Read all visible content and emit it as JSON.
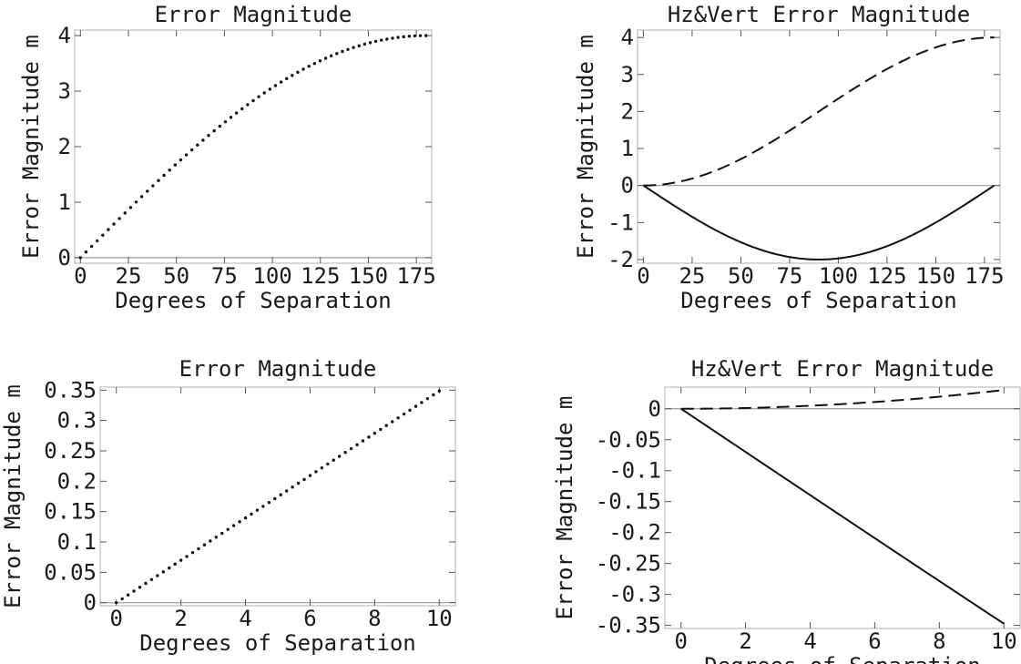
{
  "chart_data": [
    {
      "type": "line",
      "title": "Error Magnitude",
      "xlabel": "Degrees of Separation",
      "ylabel": "Error Magnitude m",
      "xlim": [
        -3,
        183
      ],
      "ylim": [
        -0.1,
        4.1
      ],
      "xticks": [
        0,
        25,
        50,
        75,
        100,
        125,
        150,
        175
      ],
      "yticks": [
        0,
        1,
        2,
        3,
        4
      ],
      "grid": false,
      "series": [
        {
          "style": "dotted",
          "x": [
            0,
            180
          ],
          "y": [
            0,
            4
          ],
          "function": "4*sin(x/2 deg)"
        }
      ]
    },
    {
      "type": "line",
      "title": "Hz&Vert Error Magnitude",
      "xlabel": "Degrees of Separation",
      "ylabel": "Error Magnitude m",
      "xlim": [
        -3,
        183
      ],
      "ylim": [
        -2.1,
        4.2
      ],
      "xticks": [
        0,
        25,
        50,
        75,
        100,
        125,
        150,
        175
      ],
      "yticks": [
        -2,
        -1,
        0,
        1,
        2,
        3,
        4
      ],
      "grid": false,
      "series": [
        {
          "style": "dashed",
          "x": [
            0,
            180
          ],
          "y": [
            0,
            4
          ],
          "function": "2*(1-cos(x deg))"
        },
        {
          "style": "solid",
          "x": [
            0,
            90,
            180
          ],
          "y": [
            0,
            -2,
            0
          ],
          "function": "-2*sin(x deg)"
        }
      ]
    },
    {
      "type": "line",
      "title": "Error Magnitude",
      "xlabel": "Degrees of Separation",
      "ylabel": "Error Magnitude m",
      "xlim": [
        -0.5,
        10.5
      ],
      "ylim": [
        -0.005,
        0.355
      ],
      "xticks": [
        0,
        2,
        4,
        6,
        8,
        10
      ],
      "yticks": [
        0,
        0.05,
        0.1,
        0.15,
        0.2,
        0.25,
        0.3,
        0.35
      ],
      "grid": false,
      "series": [
        {
          "style": "dotted",
          "x": [
            0,
            10
          ],
          "y": [
            0,
            0.349
          ],
          "function": "4*sin(x/2 deg)"
        }
      ]
    },
    {
      "type": "line",
      "title": "Hz&Vert Error Magnitude",
      "xlabel": "Degrees of Separation",
      "ylabel": "Error Magnitude m",
      "xlim": [
        -0.5,
        10.5
      ],
      "ylim": [
        -0.355,
        0.035
      ],
      "xticks": [
        0,
        2,
        4,
        6,
        8,
        10
      ],
      "yticks": [
        0,
        -0.05,
        -0.1,
        -0.15,
        -0.2,
        -0.25,
        -0.3,
        -0.35
      ],
      "grid": false,
      "series": [
        {
          "style": "dashed",
          "x": [
            0,
            10
          ],
          "y": [
            0,
            0.03
          ],
          "function": "2*(1-cos(x deg))"
        },
        {
          "style": "solid",
          "x": [
            0,
            10
          ],
          "y": [
            0,
            -0.347
          ],
          "function": "-2*sin(x deg)"
        }
      ]
    }
  ]
}
